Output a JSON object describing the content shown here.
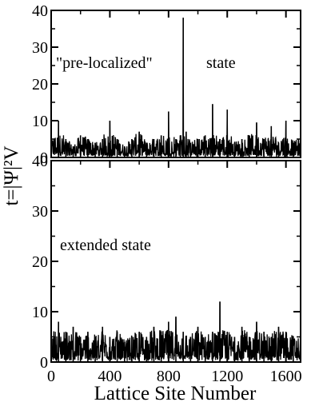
{
  "chart_data": [
    {
      "type": "line",
      "xlabel": "Lattice Site Number",
      "ylabel": "t=|Ψ|²V",
      "xlim": [
        0,
        1700
      ],
      "ylim": [
        0,
        40
      ],
      "xticks": [
        0,
        400,
        800,
        1200,
        1600
      ],
      "yticks": [
        0,
        10,
        20,
        30,
        40
      ],
      "grid": false,
      "annotations": [
        "\"pre-localized\"",
        "state"
      ],
      "series": [
        {
          "x": [
            0,
            50,
            100,
            150,
            200,
            250,
            300,
            350,
            400,
            450,
            500,
            550,
            600,
            650,
            700,
            750,
            800,
            850,
            880,
            900,
            920,
            950,
            1000,
            1050,
            1100,
            1150,
            1200,
            1250,
            1300,
            1350,
            1400,
            1450,
            1500,
            1550,
            1600,
            1650,
            1700
          ],
          "y": [
            4,
            10,
            5,
            3,
            6,
            5,
            4,
            5,
            10,
            5,
            3,
            5,
            7,
            4,
            5,
            6,
            12.5,
            5,
            6,
            38,
            7,
            4,
            5,
            6,
            14.5,
            5,
            13,
            4,
            5,
            6,
            9.5,
            5,
            8.5,
            4,
            10,
            4,
            5
          ]
        }
      ]
    },
    {
      "type": "line",
      "xlabel": "Lattice Site Number",
      "ylabel": "t=|Ψ|²V",
      "xlim": [
        0,
        1700
      ],
      "ylim": [
        0,
        40
      ],
      "xticks": [
        0,
        400,
        800,
        1200,
        1600
      ],
      "yticks": [
        0,
        10,
        20,
        30,
        40
      ],
      "grid": false,
      "annotations": [
        "extended state"
      ],
      "series": [
        {
          "x": [
            0,
            50,
            100,
            150,
            200,
            250,
            300,
            350,
            400,
            450,
            500,
            550,
            600,
            650,
            700,
            750,
            800,
            850,
            900,
            950,
            1000,
            1050,
            1100,
            1150,
            1200,
            1250,
            1300,
            1350,
            1400,
            1450,
            1500,
            1550,
            1600,
            1650,
            1700
          ],
          "y": [
            7,
            8,
            6,
            7,
            5,
            6,
            5,
            7,
            5,
            6,
            4,
            5,
            6,
            5,
            7,
            6,
            8,
            9,
            6,
            5,
            7,
            5,
            6,
            12,
            6,
            5,
            7,
            5,
            8,
            6,
            5,
            7,
            6,
            5,
            5
          ]
        }
      ]
    }
  ]
}
